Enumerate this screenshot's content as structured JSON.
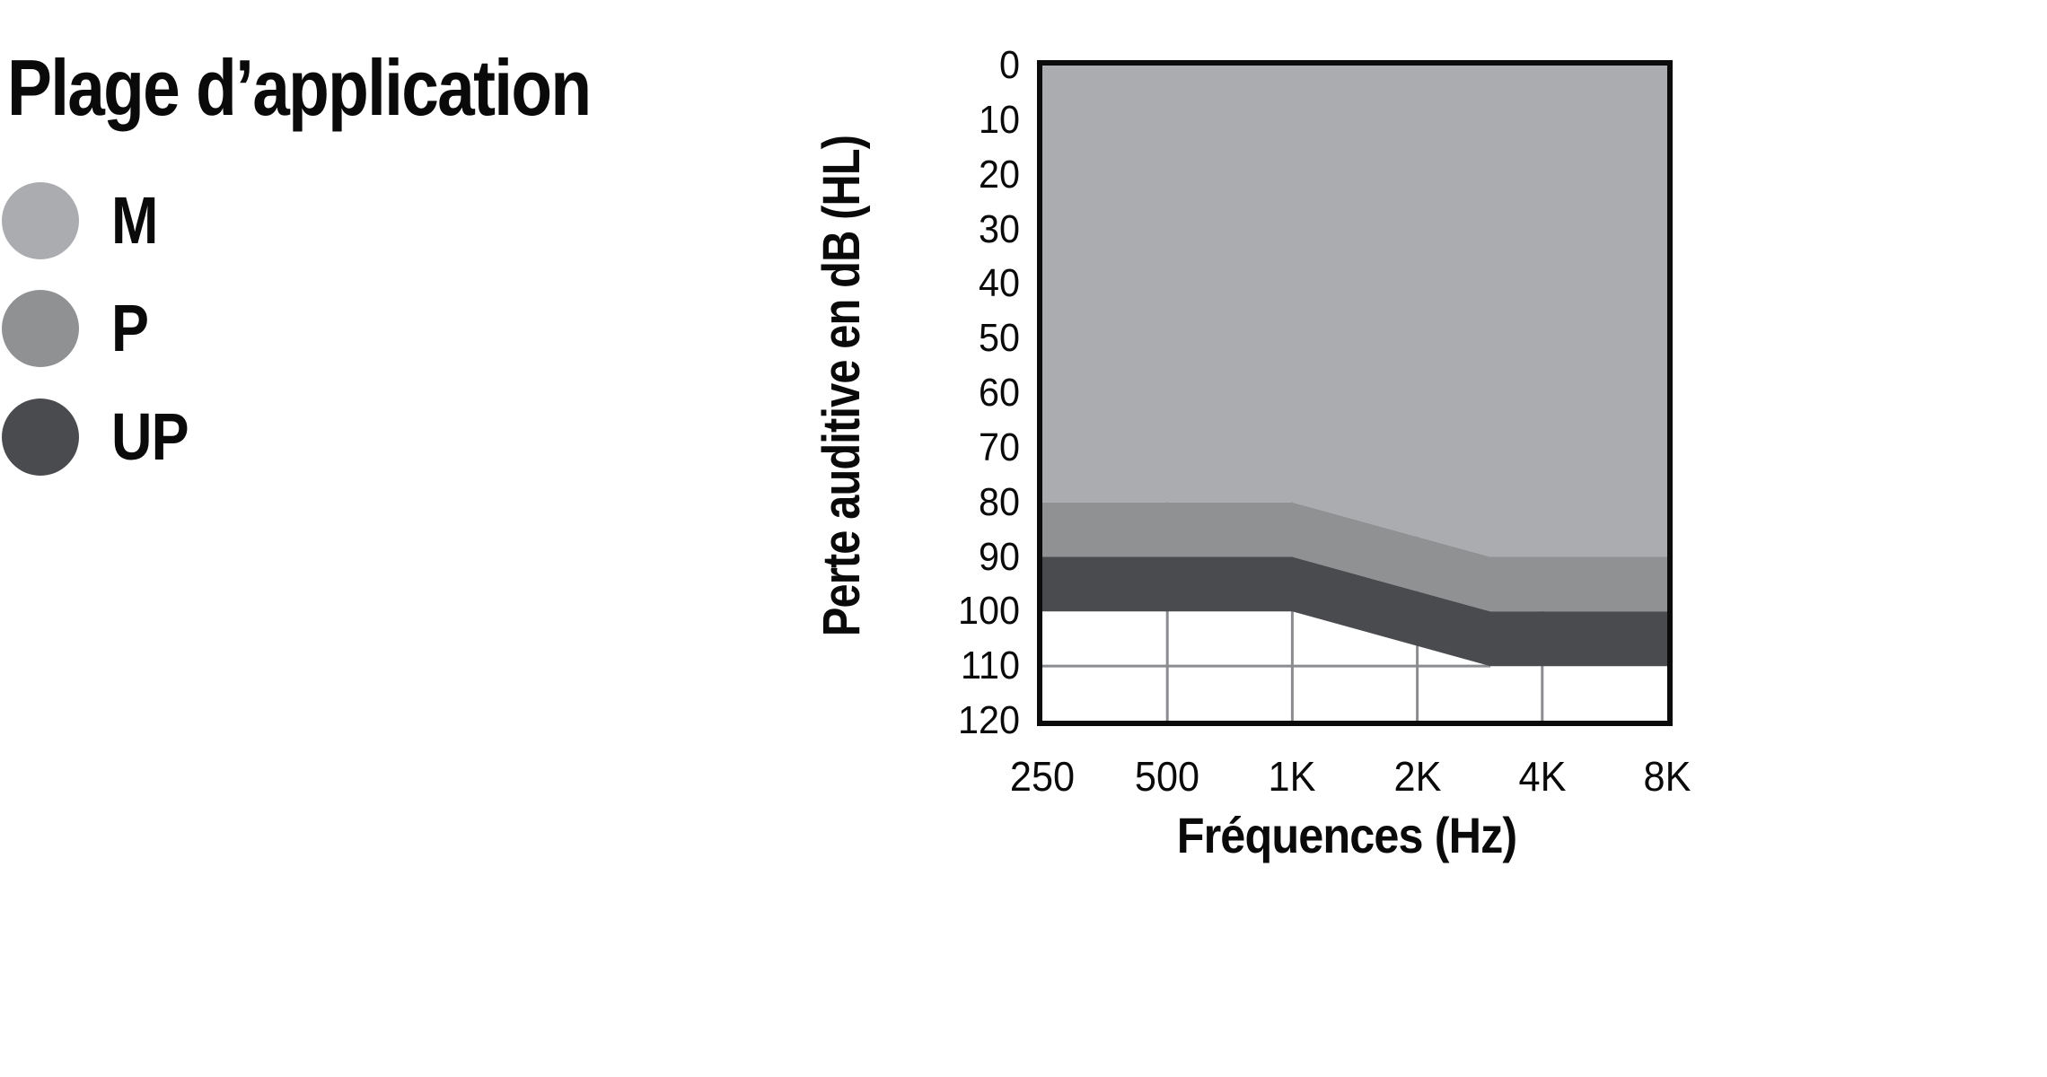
{
  "legend": {
    "title": "Plage d’application",
    "items": [
      {
        "label": "M",
        "color": "#aaacaf"
      },
      {
        "label": "P",
        "color": "#8f9193"
      },
      {
        "label": "UP",
        "color": "#4a4b4e"
      }
    ]
  },
  "chart_data": {
    "type": "area",
    "title": "Plage d’application",
    "xlabel": "Fréquences (Hz)",
    "ylabel": "Perte auditive en dB (HL)",
    "x_scale": "log2",
    "x_range": [
      250,
      8000
    ],
    "y_range": [
      0,
      120
    ],
    "y_direction": "down",
    "border_color": "#0b0b0c",
    "x_ticks": [
      {
        "hz": 250,
        "label": "250"
      },
      {
        "hz": 500,
        "label": "500"
      },
      {
        "hz": 1000,
        "label": "1K"
      },
      {
        "hz": 2000,
        "label": "2K"
      },
      {
        "hz": 4000,
        "label": "4K"
      },
      {
        "hz": 8000,
        "label": "8K"
      }
    ],
    "y_ticks": [
      {
        "db": 0,
        "label": "0"
      },
      {
        "db": 10,
        "label": "10"
      },
      {
        "db": 20,
        "label": "20"
      },
      {
        "db": 30,
        "label": "30"
      },
      {
        "db": 40,
        "label": "40"
      },
      {
        "db": 50,
        "label": "50"
      },
      {
        "db": 60,
        "label": "60"
      },
      {
        "db": 70,
        "label": "70"
      },
      {
        "db": 80,
        "label": "80"
      },
      {
        "db": 90,
        "label": "90"
      },
      {
        "db": 100,
        "label": "100"
      },
      {
        "db": 110,
        "label": "110"
      },
      {
        "db": 120,
        "label": "120"
      }
    ],
    "gridlines": {
      "color": "#8a8c8f",
      "width": 3,
      "vertical": [
        {
          "hz": 500,
          "from_db": 0,
          "to_db": 120
        },
        {
          "hz": 1000,
          "from_db": 0,
          "to_db": 120
        },
        {
          "hz": 2000,
          "from_db": 0,
          "to_db": 120
        },
        {
          "hz": 4000,
          "from_db": 0,
          "to_db": 120
        }
      ],
      "horizontal": [
        {
          "db": 110,
          "from_hz": 250,
          "to_hz": 3000
        }
      ]
    },
    "series": [
      {
        "name": "M",
        "color": "#aaacaf",
        "upper_boundary_db": [
          [
            250,
            0
          ],
          [
            8000,
            0
          ]
        ],
        "lower_boundary_db": [
          [
            250,
            80
          ],
          [
            1000,
            80
          ],
          [
            3000,
            90
          ],
          [
            8000,
            90
          ]
        ]
      },
      {
        "name": "P",
        "color": "#8f9193",
        "upper_boundary_db": [
          [
            250,
            80
          ],
          [
            1000,
            80
          ],
          [
            3000,
            90
          ],
          [
            8000,
            90
          ]
        ],
        "lower_boundary_db": [
          [
            250,
            90
          ],
          [
            1000,
            90
          ],
          [
            3000,
            100
          ],
          [
            8000,
            100
          ]
        ]
      },
      {
        "name": "UP",
        "color": "#4a4b4e",
        "upper_boundary_db": [
          [
            250,
            90
          ],
          [
            1000,
            90
          ],
          [
            3000,
            100
          ],
          [
            8000,
            100
          ]
        ],
        "lower_boundary_db": [
          [
            250,
            100
          ],
          [
            1000,
            100
          ],
          [
            3000,
            110
          ],
          [
            8000,
            110
          ]
        ]
      }
    ]
  }
}
